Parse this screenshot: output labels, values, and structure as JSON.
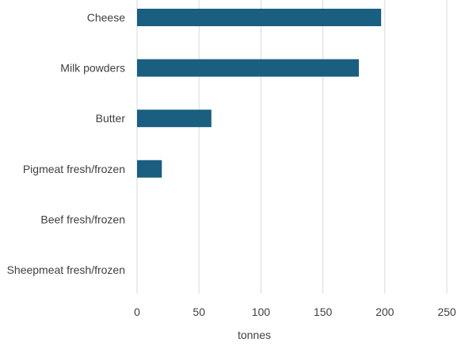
{
  "chart_data": {
    "type": "bar",
    "orientation": "horizontal",
    "categories": [
      "Cheese",
      "Milk powders",
      "Butter",
      "Pigmeat fresh/frozen",
      "Beef fresh/frozen",
      "Sheepmeat fresh/frozen"
    ],
    "values": [
      197,
      179,
      60,
      20,
      0,
      0
    ],
    "xlabel": "tonnes",
    "ylabel": "",
    "xlim": [
      0,
      250
    ],
    "xticks": [
      0,
      50,
      100,
      150,
      200,
      250
    ],
    "grid": true,
    "legend": "none",
    "bar_color": "#1a5e80"
  }
}
